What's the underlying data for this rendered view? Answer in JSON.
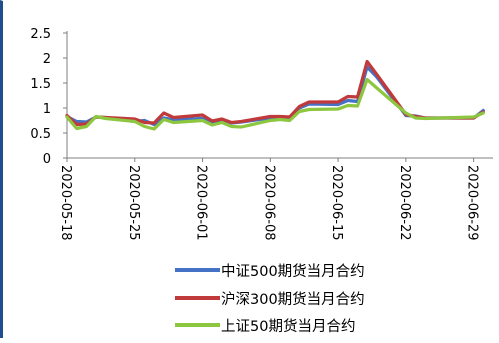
{
  "chart_data": {
    "type": "line",
    "title": "",
    "xlabel": "",
    "ylabel": "",
    "ylim": [
      0,
      2.5
    ],
    "yticks": [
      "0",
      "0.5",
      "1",
      "1.5",
      "2",
      "2.5"
    ],
    "xticks": [
      "2020-05-18",
      "2020-05-25",
      "2020-06-01",
      "2020-06-08",
      "2020-06-15",
      "2020-06-22",
      "2020-06-29"
    ],
    "x": [
      "2020-05-18",
      "2020-05-19",
      "2020-05-20",
      "2020-05-21",
      "2020-05-22",
      "2020-05-25",
      "2020-05-26",
      "2020-05-27",
      "2020-05-28",
      "2020-05-29",
      "2020-06-01",
      "2020-06-02",
      "2020-06-03",
      "2020-06-04",
      "2020-06-05",
      "2020-06-08",
      "2020-06-09",
      "2020-06-10",
      "2020-06-11",
      "2020-06-12",
      "2020-06-15",
      "2020-06-16",
      "2020-06-17",
      "2020-06-18",
      "2020-06-19",
      "2020-06-22",
      "2020-06-23",
      "2020-06-24",
      "2020-06-29",
      "2020-06-30"
    ],
    "grid": false,
    "legend_position": "bottom",
    "series": [
      {
        "name": "中证500期货当月合约",
        "color": "#4472c4",
        "values": [
          0.83,
          0.73,
          0.72,
          0.82,
          0.81,
          0.73,
          0.75,
          0.67,
          0.8,
          0.76,
          0.79,
          0.72,
          0.75,
          0.7,
          0.72,
          0.8,
          0.8,
          0.78,
          1.0,
          1.08,
          1.07,
          1.15,
          1.13,
          1.82,
          1.62,
          0.85,
          0.84,
          0.8,
          0.8,
          0.95
        ]
      },
      {
        "name": "沪深300期货当月合约",
        "color": "#c0393b",
        "values": [
          0.85,
          0.67,
          0.68,
          0.82,
          0.81,
          0.78,
          0.71,
          0.7,
          0.9,
          0.81,
          0.86,
          0.74,
          0.78,
          0.71,
          0.73,
          0.83,
          0.83,
          0.82,
          1.03,
          1.12,
          1.12,
          1.23,
          1.22,
          1.93,
          1.67,
          0.87,
          0.83,
          0.8,
          0.8,
          0.92
        ]
      },
      {
        "name": "上证50期货当月合约",
        "color": "#8dc63f",
        "values": [
          0.82,
          0.59,
          0.63,
          0.83,
          0.79,
          0.73,
          0.63,
          0.58,
          0.77,
          0.71,
          0.75,
          0.66,
          0.71,
          0.63,
          0.62,
          0.75,
          0.77,
          0.75,
          0.93,
          0.97,
          0.98,
          1.05,
          1.04,
          1.57,
          1.4,
          0.9,
          0.8,
          0.79,
          0.82,
          0.9
        ]
      }
    ]
  }
}
